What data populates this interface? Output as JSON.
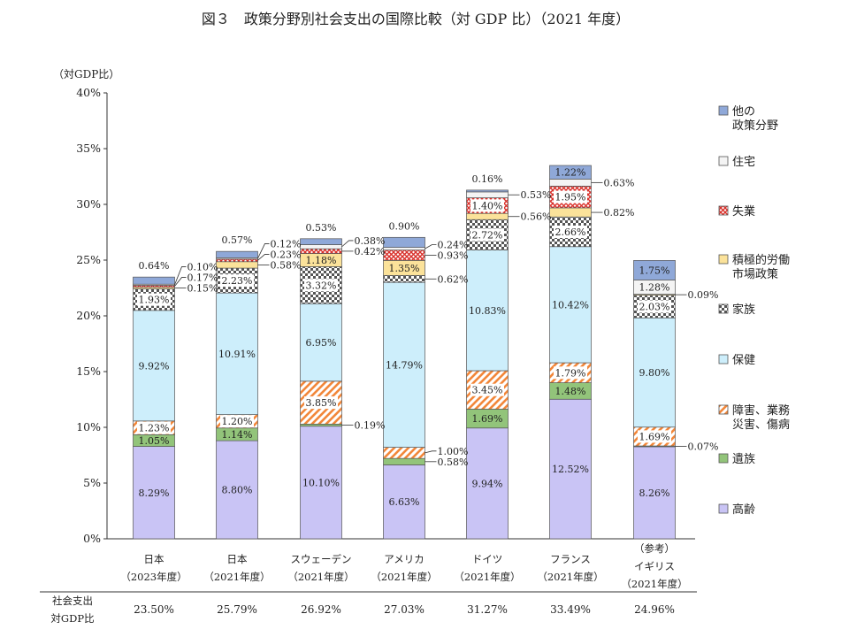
{
  "chart_data": {
    "type": "bar",
    "stacked": true,
    "title": "図３　政策分野別社会支出の国際比較（対 GDP 比）（2021 年度）",
    "ylabel": "（対GDP比）",
    "ylim": [
      0,
      40
    ],
    "yticks": [
      "0%",
      "5%",
      "10%",
      "15%",
      "20%",
      "25%",
      "30%",
      "35%",
      "40%"
    ],
    "grid": false,
    "legend_position": "right",
    "categories": [
      {
        "name": "日本",
        "year": "（2023年度）"
      },
      {
        "name": "日本",
        "year": "（2021年度）"
      },
      {
        "name": "スウェーデン",
        "year": "（2021年度）"
      },
      {
        "name": "アメリカ",
        "year": "（2021年度）"
      },
      {
        "name": "ドイツ",
        "year": "（2021年度）"
      },
      {
        "name": "フランス",
        "year": "（2021年度）"
      },
      {
        "name": "イギリス",
        "year": "（2021年度）",
        "note": "（参考）"
      }
    ],
    "series": [
      {
        "name": "高齢",
        "color": "#c9c4f5",
        "pattern": "solid",
        "values": [
          8.29,
          8.8,
          10.1,
          6.63,
          9.94,
          12.52,
          8.26
        ],
        "labels": [
          "8.29%",
          "8.80%",
          "10.10%",
          "6.63%",
          "9.94%",
          "12.52%",
          "8.26%"
        ]
      },
      {
        "name": "遺族",
        "color": "#92c47a",
        "pattern": "solid",
        "values": [
          1.05,
          1.14,
          0.19,
          0.58,
          1.69,
          1.48,
          0.07
        ],
        "labels": [
          "1.05%",
          "1.14%",
          "0.19%",
          "0.58%",
          "1.69%",
          "1.48%",
          "0.07%"
        ]
      },
      {
        "name": "障害、業務\n災害、傷病",
        "color": "#f2873a",
        "pattern": "diagonal",
        "values": [
          1.23,
          1.2,
          3.85,
          1.0,
          3.45,
          1.79,
          1.69
        ],
        "labels": [
          "1.23%",
          "1.20%",
          "3.85%",
          "1.00%",
          "3.45%",
          "1.79%",
          "1.69%"
        ]
      },
      {
        "name": "保健",
        "color": "#cdeefb",
        "pattern": "solid",
        "values": [
          9.92,
          10.91,
          6.95,
          14.79,
          10.83,
          10.42,
          9.8
        ],
        "labels": [
          "9.92%",
          "10.91%",
          "6.95%",
          "14.79%",
          "10.83%",
          "10.42%",
          "9.80%"
        ]
      },
      {
        "name": "家族",
        "color": "#555555",
        "pattern": "checker",
        "values": [
          1.93,
          2.23,
          3.32,
          0.62,
          2.72,
          2.66,
          2.03
        ],
        "labels": [
          "1.93%",
          "2.23%",
          "3.32%",
          "0.62%",
          "2.72%",
          "2.66%",
          "2.03%"
        ]
      },
      {
        "name": "積極的労働\n市場政策",
        "color": "#fbe29a",
        "pattern": "solid",
        "values": [
          0.15,
          0.58,
          1.18,
          1.35,
          0.56,
          0.82,
          0.09
        ],
        "labels": [
          "0.15%",
          "0.58%",
          "1.18%",
          "1.35%",
          "0.56%",
          "0.82%",
          "0.09%"
        ]
      },
      {
        "name": "失業",
        "color": "#d9312b",
        "pattern": "cross",
        "values": [
          0.17,
          0.23,
          0.42,
          0.93,
          1.4,
          1.95,
          0
        ],
        "labels": [
          "0.17%",
          "0.23%",
          "0.42%",
          "0.93%",
          "1.40%",
          "1.95%",
          ""
        ]
      },
      {
        "name": "住宅",
        "color": "#f4f4f4",
        "pattern": "solid",
        "values": [
          0.1,
          0.12,
          0.38,
          0.24,
          0.53,
          0.63,
          1.28
        ],
        "labels": [
          "0.10%",
          "0.12%",
          "0.38%",
          "0.24%",
          "0.53%",
          "0.63%",
          "1.28%"
        ]
      },
      {
        "name": "他の\n政策分野",
        "color": "#8fa8d8",
        "pattern": "solid",
        "values": [
          0.64,
          0.57,
          0.53,
          0.9,
          0.16,
          1.22,
          1.75
        ],
        "labels": [
          "0.64%",
          "0.57%",
          "0.53%",
          "0.90%",
          "0.16%",
          "1.22%",
          "1.75%"
        ]
      }
    ],
    "totals": {
      "label_line1": "社会支出",
      "label_line2": "対GDP比",
      "values": [
        "23.50%",
        "25.79%",
        "26.92%",
        "27.03%",
        "31.27%",
        "33.49%",
        "24.96%"
      ]
    }
  }
}
